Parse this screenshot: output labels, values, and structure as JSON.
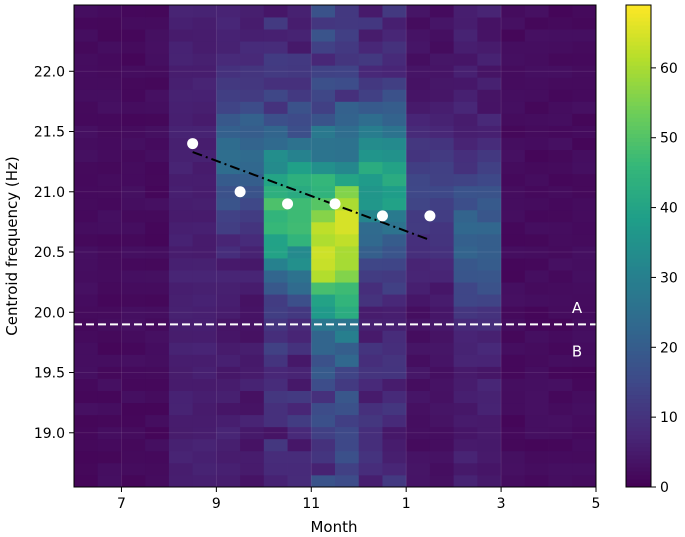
{
  "chart_data": {
    "type": "heatmap",
    "xlabel": "Month",
    "ylabel": "Centroid frequency (Hz)",
    "x_ticks": [
      {
        "label": "7",
        "month_index": 1
      },
      {
        "label": "9",
        "month_index": 3
      },
      {
        "label": "11",
        "month_index": 5
      },
      {
        "label": "1",
        "month_index": 7
      },
      {
        "label": "3",
        "month_index": 9
      },
      {
        "label": "5",
        "month_index": 11
      }
    ],
    "x_start_month": 6,
    "xlim": [
      0,
      11
    ],
    "ylim": [
      18.55,
      22.55
    ],
    "y_ticks": [
      {
        "label": "19.0",
        "value": 19.0
      },
      {
        "label": "19.5",
        "value": 19.5
      },
      {
        "label": "20.0",
        "value": 20.0
      },
      {
        "label": "20.5",
        "value": 20.5
      },
      {
        "label": "21.0",
        "value": 21.0
      },
      {
        "label": "21.5",
        "value": 21.5
      },
      {
        "label": "22.0",
        "value": 22.0
      }
    ],
    "colorbar": {
      "min": 0,
      "max": 69,
      "colormap": "viridis",
      "ticks": [
        {
          "label": "0",
          "value": 0
        },
        {
          "label": "10",
          "value": 10
        },
        {
          "label": "20",
          "value": 20
        },
        {
          "label": "30",
          "value": 30
        },
        {
          "label": "40",
          "value": 40
        },
        {
          "label": "50",
          "value": 50
        },
        {
          "label": "60",
          "value": 60
        }
      ]
    },
    "heatmap": {
      "description_of_grid": "22 monthly half-bins (x) by 40 frequency bins of 0.1 Hz (y, from 18.55 to 22.55 Hz); values are counts estimated from colour",
      "n_x_bins": 22,
      "y_bin_start": 18.55,
      "y_bin_width": 0.1,
      "month_profiles": [
        {
          "x_bins": [
            0,
            1,
            2,
            3
          ],
          "base": 2
        },
        {
          "x_bins": [
            4,
            5
          ],
          "base": 6
        },
        {
          "x_bins": [
            6,
            7
          ],
          "peak": 24,
          "center": 21.3,
          "spread": 0.55,
          "floor": 5
        },
        {
          "x_bins": [
            8,
            9
          ],
          "peak": 48,
          "center": 20.85,
          "spread": 0.6,
          "floor": 8
        },
        {
          "x_bins": [
            10,
            11
          ],
          "peak": 65,
          "center": 20.6,
          "spread": 0.7,
          "floor": 12
        },
        {
          "x_bins": [
            12,
            13
          ],
          "peak": 40,
          "center": 21.1,
          "spread": 0.55,
          "floor": 8
        },
        {
          "x_bins": [
            14,
            15
          ],
          "peak": 14,
          "center": 21.0,
          "spread": 0.6,
          "floor": 3
        },
        {
          "x_bins": [
            16,
            17
          ],
          "peak": 22,
          "center": 20.6,
          "spread": 0.6,
          "floor": 5
        },
        {
          "x_bins": [
            18,
            19,
            20,
            21
          ],
          "base": 2
        }
      ]
    },
    "series": [
      {
        "type": "scatter",
        "color": "#ffffff",
        "x_month_index": [
          2.5,
          3.5,
          4.5,
          5.5,
          6.5,
          7.5
        ],
        "y": [
          21.4,
          21.0,
          20.9,
          20.9,
          20.8,
          20.8
        ]
      },
      {
        "type": "line",
        "style": "dash-dot",
        "color": "#000000",
        "x_month_index": [
          2.5,
          7.5
        ],
        "y": [
          21.33,
          20.6
        ]
      },
      {
        "type": "hline",
        "style": "dashed",
        "color": "#ffffff",
        "y": 19.9
      }
    ],
    "annotations": [
      {
        "text": "A",
        "x_month_index": 10.6,
        "y": 20.03
      },
      {
        "text": "B",
        "x_month_index": 10.6,
        "y": 19.67
      }
    ],
    "grid": true,
    "legend": "none"
  }
}
